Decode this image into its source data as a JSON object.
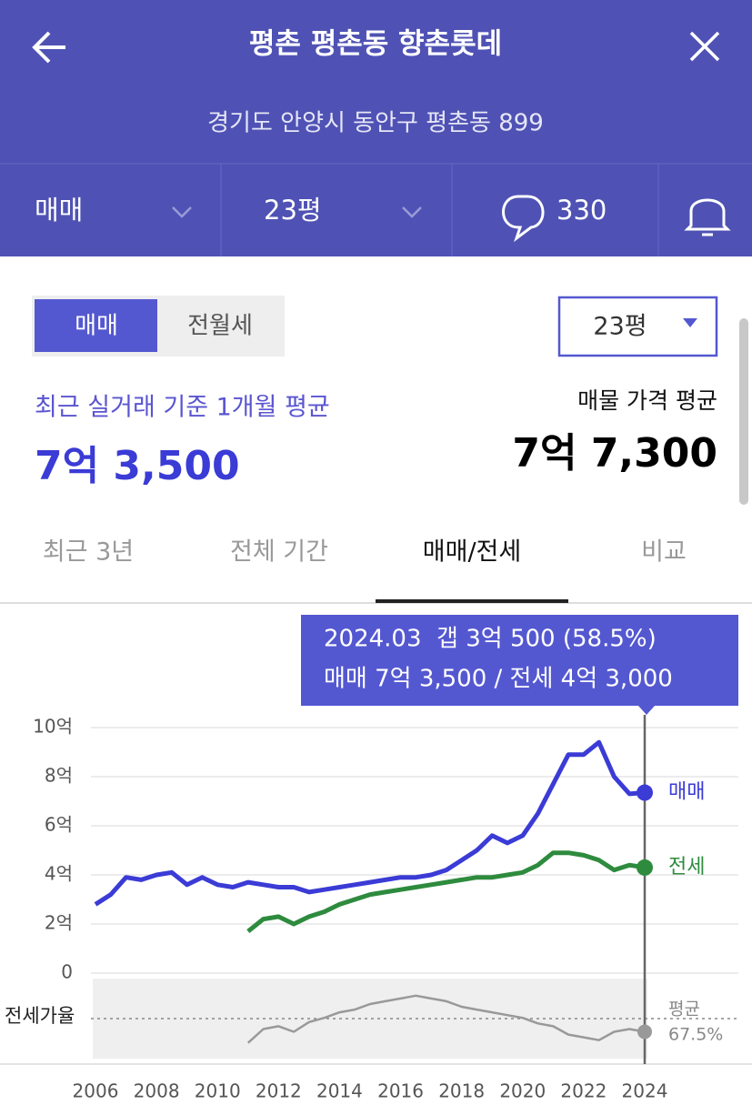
{
  "header": {
    "title": "평촌 평촌동 향촌롯데",
    "subtitle": "경기도 안양시 동안구 평촌동 899"
  },
  "toolbar": {
    "trade_type": "매매",
    "size": "23평",
    "comments": "330"
  },
  "summary": {
    "toggle": [
      "매매",
      "전월세"
    ],
    "size_select": "23평",
    "recent_label": "최근 실거래 기준 1개월 평균",
    "recent_price": "7억 3,500",
    "listing_label": "매물 가격 평균",
    "listing_price": "7억 7,300"
  },
  "tabs": [
    "최근 3년",
    "전체 기간",
    "매매/전세",
    "비교"
  ],
  "tooltip": {
    "line1": "2024.03  갭 3억 500 (58.5%)",
    "line2": "매매 7억 3,500 / 전세 4억 3,000"
  },
  "chart_data": {
    "type": "line",
    "grid": true,
    "ylim": [
      0,
      10
    ],
    "yticks": [
      0,
      {
        "value": 2,
        "label": "2억"
      },
      {
        "value": 4,
        "label": "4억"
      },
      {
        "value": 6,
        "label": "6억"
      },
      {
        "value": 8,
        "label": "8억"
      },
      {
        "value": 10,
        "label": "10억"
      }
    ],
    "xlim": [
      2006,
      2024
    ],
    "xticks": [
      2006,
      2008,
      2010,
      2012,
      2014,
      2016,
      2018,
      2020,
      2022,
      2024
    ],
    "series": [
      {
        "name": "매매",
        "color": "#3b3bd6",
        "x": [
          2006.0,
          2006.5,
          2007.0,
          2007.5,
          2008.0,
          2008.5,
          2009.0,
          2009.5,
          2010.0,
          2010.5,
          2011.0,
          2011.5,
          2012.0,
          2012.5,
          2013.0,
          2013.5,
          2014.0,
          2014.5,
          2015.0,
          2015.5,
          2016.0,
          2016.5,
          2017.0,
          2017.5,
          2018.0,
          2018.5,
          2019.0,
          2019.5,
          2020.0,
          2020.5,
          2021.0,
          2021.5,
          2022.0,
          2022.5,
          2023.0,
          2023.5,
          2024.0
        ],
        "values": [
          2.8,
          3.2,
          3.9,
          3.8,
          4.0,
          4.1,
          3.6,
          3.9,
          3.6,
          3.5,
          3.7,
          3.6,
          3.5,
          3.5,
          3.3,
          3.4,
          3.5,
          3.6,
          3.7,
          3.8,
          3.9,
          3.9,
          4.0,
          4.2,
          4.6,
          5.0,
          5.6,
          5.3,
          5.6,
          6.5,
          7.7,
          8.9,
          8.9,
          9.4,
          8.0,
          7.3,
          7.35
        ]
      },
      {
        "name": "전세",
        "color": "#2e8b3e",
        "x": [
          2011.0,
          2011.5,
          2012.0,
          2012.5,
          2013.0,
          2013.5,
          2014.0,
          2014.5,
          2015.0,
          2015.5,
          2016.0,
          2016.5,
          2017.0,
          2017.5,
          2018.0,
          2018.5,
          2019.0,
          2019.5,
          2020.0,
          2020.5,
          2021.0,
          2021.5,
          2022.0,
          2022.5,
          2023.0,
          2023.5,
          2024.0
        ],
        "values": [
          1.7,
          2.2,
          2.3,
          2.0,
          2.3,
          2.5,
          2.8,
          3.0,
          3.2,
          3.3,
          3.4,
          3.5,
          3.6,
          3.7,
          3.8,
          3.9,
          3.9,
          4.0,
          4.1,
          4.4,
          4.9,
          4.9,
          4.8,
          4.6,
          4.2,
          4.4,
          4.3
        ]
      }
    ],
    "ratio": {
      "label": "전세가율",
      "color": "#999999",
      "ylim": [
        40,
        95
      ],
      "x": [
        2011.0,
        2011.5,
        2012.0,
        2012.5,
        2013.0,
        2013.5,
        2014.0,
        2014.5,
        2015.0,
        2015.5,
        2016.0,
        2016.5,
        2017.0,
        2017.5,
        2018.0,
        2018.5,
        2019.0,
        2019.5,
        2020.0,
        2020.5,
        2021.0,
        2021.5,
        2022.0,
        2022.5,
        2023.0,
        2023.5,
        2024.0
      ],
      "values": [
        50,
        60,
        62,
        58,
        65,
        68,
        72,
        74,
        78,
        80,
        82,
        84,
        82,
        80,
        76,
        74,
        72,
        70,
        68,
        64,
        62,
        56,
        54,
        52,
        58,
        60,
        58
      ],
      "average": 67.5,
      "average_title": "평균",
      "average_label": "67.5%"
    }
  }
}
